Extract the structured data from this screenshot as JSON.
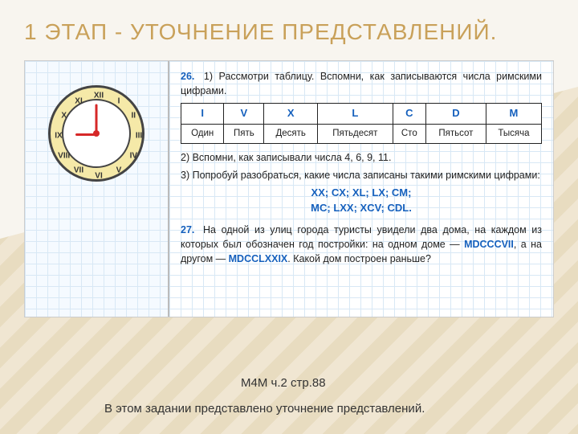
{
  "title": "1 ЭТАП - УТОЧНЕНИЕ ПРЕДСТАВЛЕНИЙ.",
  "clock": {
    "numerals": [
      "XII",
      "I",
      "II",
      "III",
      "IV",
      "V",
      "VI",
      "VII",
      "VIII",
      "IX",
      "X",
      "XI"
    ],
    "hour_hand_rotation_deg": 180,
    "minute_hand_rotation_deg": -90,
    "face_color": "#f5e9a8",
    "hand_color": "#d62828"
  },
  "task26": {
    "num": "26.",
    "p1": "1) Рассмотри таблицу. Вспомни, как записываются числа римскими цифрами.",
    "table": {
      "romans": [
        "I",
        "V",
        "X",
        "L",
        "C",
        "D",
        "M"
      ],
      "names": [
        "Один",
        "Пять",
        "Десять",
        "Пятьдесят",
        "Сто",
        "Пятьсот",
        "Тысяча"
      ]
    },
    "p2": "2) Вспомни, как записывали числа 4, 6, 9, 11.",
    "p3": "3) Попробуй разобраться, какие числа записаны такими римскими цифрами:",
    "romans_line1": "XX; CX; XL; LX; CM;",
    "romans_line2": "MC; LXX; XCV; CDL."
  },
  "task27": {
    "num": "27.",
    "text_a": "На одной из улиц города туристы увидели два дома, на каждом из которых был обозначен год постройки: на одном доме — ",
    "roman1": "MDCCCVII",
    "text_b": ", а на другом — ",
    "roman2": "MDCCLXXIX",
    "text_c": ". Какой дом построен раньше?"
  },
  "source": "М4М ч.2 стр.88",
  "note": "В этом задании представлено уточнение представлений.",
  "colors": {
    "heading": "#c9a15a",
    "accent_blue": "#1560bd",
    "grid": "#d8e8f5"
  }
}
